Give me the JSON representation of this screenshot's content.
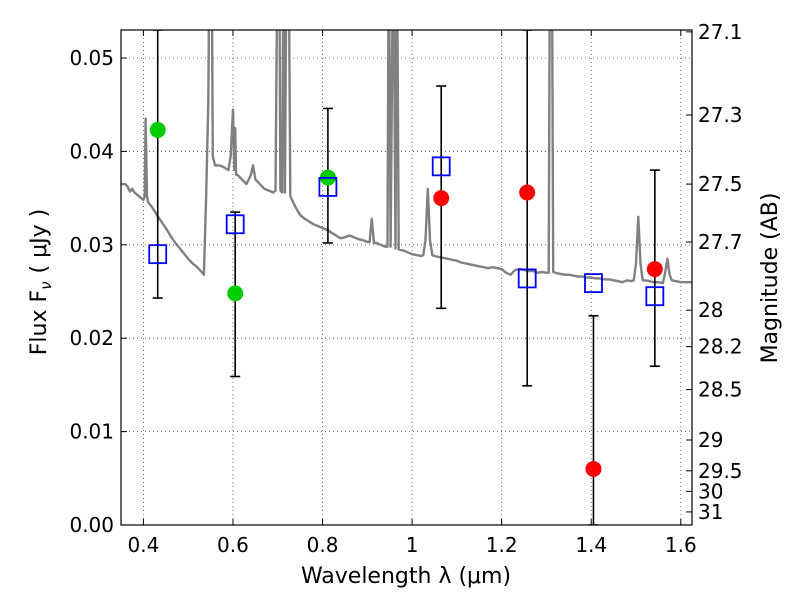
{
  "chart_data": {
    "type": "scatter",
    "xlabel": "Wavelength  λ (μm)",
    "ylabel": "Flux  F",
    "ylabel_sub": "ν",
    "ylabel_unit": "( μJy )",
    "y2label": "Magnitude (AB)",
    "xlim": [
      0.35,
      1.625
    ],
    "ylim": [
      0.0,
      0.053
    ],
    "grid": true,
    "x_ticks": [
      0.4,
      0.6,
      0.8,
      1.0,
      1.2,
      1.4,
      1.6
    ],
    "x_tick_labels": [
      "0.4",
      "0.6",
      "0.8",
      "1",
      "1.2",
      "1.4",
      "1.6"
    ],
    "y_ticks": [
      0.0,
      0.01,
      0.02,
      0.03,
      0.04,
      0.05
    ],
    "y_tick_labels": [
      "0.00",
      "0.01",
      "0.02",
      "0.03",
      "0.04",
      "0.05"
    ],
    "y2_ticks": [
      {
        "label": "27.1",
        "flux": 0.0528
      },
      {
        "label": "27.3",
        "flux": 0.0439
      },
      {
        "label": "27.5",
        "flux": 0.0365
      },
      {
        "label": "27.7",
        "flux": 0.0303
      },
      {
        "label": "28",
        "flux": 0.023
      },
      {
        "label": "28.2",
        "flux": 0.0191
      },
      {
        "label": "28.5",
        "flux": 0.0145
      },
      {
        "label": "29",
        "flux": 0.0091
      },
      {
        "label": "29.5",
        "flux": 0.0058
      },
      {
        "label": "30",
        "flux": 0.0036
      },
      {
        "label": "31",
        "flux": 0.0014
      }
    ],
    "series": [
      {
        "kind": "line",
        "color": "#808080",
        "points": [
          [
            0.35,
            0.0365
          ],
          [
            0.36,
            0.0365
          ],
          [
            0.365,
            0.0362
          ],
          [
            0.37,
            0.0357
          ],
          [
            0.375,
            0.036
          ],
          [
            0.38,
            0.0356
          ],
          [
            0.39,
            0.0352
          ],
          [
            0.4,
            0.0348
          ],
          [
            0.403,
            0.0352
          ],
          [
            0.405,
            0.0435
          ],
          [
            0.408,
            0.0352
          ],
          [
            0.41,
            0.0346
          ],
          [
            0.42,
            0.034
          ],
          [
            0.43,
            0.0332
          ],
          [
            0.44,
            0.0325
          ],
          [
            0.45,
            0.0318
          ],
          [
            0.46,
            0.031
          ],
          [
            0.47,
            0.0303
          ],
          [
            0.48,
            0.0297
          ],
          [
            0.49,
            0.0291
          ],
          [
            0.5,
            0.0285
          ],
          [
            0.51,
            0.028
          ],
          [
            0.52,
            0.0276
          ],
          [
            0.53,
            0.0271
          ],
          [
            0.535,
            0.0268
          ],
          [
            0.54,
            0.035
          ],
          [
            0.545,
            0.0453
          ],
          [
            0.548,
            0.065
          ],
          [
            0.552,
            0.065
          ],
          [
            0.555,
            0.0395
          ],
          [
            0.56,
            0.0385
          ],
          [
            0.57,
            0.0385
          ],
          [
            0.58,
            0.0383
          ],
          [
            0.59,
            0.038
          ],
          [
            0.595,
            0.0395
          ],
          [
            0.6,
            0.0445
          ],
          [
            0.603,
            0.038
          ],
          [
            0.605,
            0.0425
          ],
          [
            0.607,
            0.0375
          ],
          [
            0.61,
            0.0375
          ],
          [
            0.62,
            0.037
          ],
          [
            0.63,
            0.0365
          ],
          [
            0.64,
            0.0375
          ],
          [
            0.645,
            0.0385
          ],
          [
            0.65,
            0.037
          ],
          [
            0.66,
            0.0365
          ],
          [
            0.67,
            0.036
          ],
          [
            0.68,
            0.0358
          ],
          [
            0.69,
            0.0356
          ],
          [
            0.695,
            0.0358
          ],
          [
            0.7,
            0.065
          ],
          [
            0.703,
            0.065
          ],
          [
            0.706,
            0.0358
          ],
          [
            0.71,
            0.0356
          ],
          [
            0.713,
            0.065
          ],
          [
            0.716,
            0.0356
          ],
          [
            0.72,
            0.065
          ],
          [
            0.724,
            0.065
          ],
          [
            0.728,
            0.0352
          ],
          [
            0.735,
            0.0345
          ],
          [
            0.74,
            0.034
          ],
          [
            0.75,
            0.0332
          ],
          [
            0.76,
            0.0328
          ],
          [
            0.77,
            0.0325
          ],
          [
            0.78,
            0.0322
          ],
          [
            0.79,
            0.032
          ],
          [
            0.8,
            0.0318
          ],
          [
            0.81,
            0.0316
          ],
          [
            0.82,
            0.0313
          ],
          [
            0.83,
            0.031
          ],
          [
            0.84,
            0.0307
          ],
          [
            0.85,
            0.0308
          ],
          [
            0.86,
            0.031
          ],
          [
            0.87,
            0.0308
          ],
          [
            0.88,
            0.0306
          ],
          [
            0.89,
            0.0305
          ],
          [
            0.9,
            0.0303
          ],
          [
            0.905,
            0.0303
          ],
          [
            0.91,
            0.0328
          ],
          [
            0.915,
            0.0302
          ],
          [
            0.92,
            0.0302
          ],
          [
            0.93,
            0.03
          ],
          [
            0.94,
            0.0298
          ],
          [
            0.945,
            0.0298
          ],
          [
            0.948,
            0.065
          ],
          [
            0.952,
            0.0298
          ],
          [
            0.958,
            0.065
          ],
          [
            0.963,
            0.0296
          ],
          [
            0.966,
            0.065
          ],
          [
            0.97,
            0.0295
          ],
          [
            0.98,
            0.0294
          ],
          [
            0.99,
            0.0292
          ],
          [
            1.0,
            0.029
          ],
          [
            1.01,
            0.0289
          ],
          [
            1.02,
            0.0288
          ],
          [
            1.025,
            0.0289
          ],
          [
            1.03,
            0.0305
          ],
          [
            1.035,
            0.036
          ],
          [
            1.04,
            0.0305
          ],
          [
            1.045,
            0.0289
          ],
          [
            1.05,
            0.0288
          ],
          [
            1.06,
            0.0287
          ],
          [
            1.07,
            0.0286
          ],
          [
            1.08,
            0.0285
          ],
          [
            1.09,
            0.0284
          ],
          [
            1.1,
            0.0283
          ],
          [
            1.11,
            0.0281
          ],
          [
            1.12,
            0.028
          ],
          [
            1.13,
            0.0279
          ],
          [
            1.14,
            0.0278
          ],
          [
            1.15,
            0.0277
          ],
          [
            1.16,
            0.0276
          ],
          [
            1.17,
            0.0275
          ],
          [
            1.18,
            0.0276
          ],
          [
            1.19,
            0.0275
          ],
          [
            1.2,
            0.0274
          ],
          [
            1.21,
            0.027
          ],
          [
            1.22,
            0.0268
          ],
          [
            1.23,
            0.0273
          ],
          [
            1.24,
            0.0274
          ],
          [
            1.25,
            0.0273
          ],
          [
            1.26,
            0.0272
          ],
          [
            1.27,
            0.0272
          ],
          [
            1.28,
            0.027
          ],
          [
            1.29,
            0.0271
          ],
          [
            1.3,
            0.027
          ],
          [
            1.305,
            0.027
          ],
          [
            1.308,
            0.065
          ],
          [
            1.312,
            0.065
          ],
          [
            1.315,
            0.0271
          ],
          [
            1.32,
            0.027
          ],
          [
            1.33,
            0.0269
          ],
          [
            1.34,
            0.0268
          ],
          [
            1.35,
            0.0268
          ],
          [
            1.36,
            0.0267
          ],
          [
            1.37,
            0.0266
          ],
          [
            1.38,
            0.0266
          ],
          [
            1.39,
            0.0265
          ],
          [
            1.4,
            0.0265
          ],
          [
            1.41,
            0.0264
          ],
          [
            1.42,
            0.0264
          ],
          [
            1.43,
            0.0263
          ],
          [
            1.44,
            0.0263
          ],
          [
            1.45,
            0.0262
          ],
          [
            1.46,
            0.0261
          ],
          [
            1.47,
            0.026
          ],
          [
            1.48,
            0.0262
          ],
          [
            1.49,
            0.0261
          ],
          [
            1.495,
            0.0262
          ],
          [
            1.5,
            0.028
          ],
          [
            1.505,
            0.033
          ],
          [
            1.51,
            0.028
          ],
          [
            1.515,
            0.0262
          ],
          [
            1.52,
            0.0262
          ],
          [
            1.53,
            0.0261
          ],
          [
            1.54,
            0.026
          ],
          [
            1.55,
            0.026
          ],
          [
            1.56,
            0.0259
          ],
          [
            1.565,
            0.027
          ],
          [
            1.57,
            0.0285
          ],
          [
            1.575,
            0.0268
          ],
          [
            1.58,
            0.0262
          ],
          [
            1.59,
            0.0261
          ],
          [
            1.6,
            0.026
          ],
          [
            1.61,
            0.026
          ],
          [
            1.625,
            0.026
          ]
        ]
      },
      {
        "kind": "markers",
        "marker": "circle",
        "color": "#00cc00",
        "points": [
          [
            0.432,
            0.0423
          ],
          [
            0.605,
            0.0248
          ],
          [
            0.812,
            0.0372
          ]
        ]
      },
      {
        "kind": "markers",
        "marker": "circle",
        "color": "#ff0000",
        "points": [
          [
            1.065,
            0.035
          ],
          [
            1.257,
            0.0356
          ],
          [
            1.405,
            0.006
          ],
          [
            1.542,
            0.0274
          ]
        ]
      },
      {
        "kind": "markers",
        "marker": "square-open",
        "color": "#0000ff",
        "points": [
          [
            0.432,
            0.029
          ],
          [
            0.605,
            0.0322
          ],
          [
            0.812,
            0.0362
          ],
          [
            1.065,
            0.0384
          ],
          [
            1.257,
            0.0264
          ],
          [
            1.405,
            0.0259
          ],
          [
            1.542,
            0.0245
          ]
        ]
      },
      {
        "kind": "errorbars",
        "color": "#000000",
        "points": [
          {
            "x": 0.432,
            "low": 0.0243,
            "high": 0.053
          },
          {
            "x": 0.605,
            "low": 0.0159,
            "high": 0.0335
          },
          {
            "x": 0.812,
            "low": 0.0302,
            "high": 0.0446
          },
          {
            "x": 1.065,
            "low": 0.0232,
            "high": 0.047
          },
          {
            "x": 1.257,
            "low": 0.0149,
            "high": 0.053
          },
          {
            "x": 1.405,
            "low": 0.0,
            "high": 0.0224
          },
          {
            "x": 1.542,
            "low": 0.017,
            "high": 0.038
          }
        ]
      }
    ]
  }
}
